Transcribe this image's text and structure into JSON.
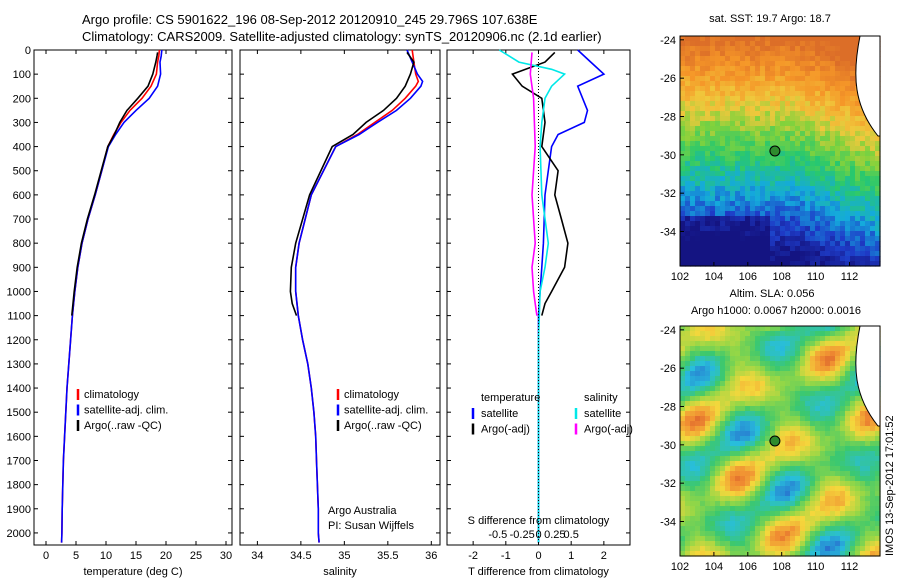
{
  "header": {
    "line1": "Argo profile: CS 5901622_196 08-Sep-2012 20120910_245 29.796S 107.638E",
    "line2": "Climatology: CARS2009. Satellite-adjusted climatology: synTS_20120906.nc (2.1d earlier)"
  },
  "side_text": "IMOS 13-Sep-2012 17:01:52",
  "colors": {
    "climatology": "#ff0000",
    "satellite": "#0000ff",
    "argo": "#000000",
    "cyan": "#00e8e8",
    "magenta": "#ff00ff",
    "marker": "#2e8b2e"
  },
  "chart_data": [
    {
      "id": "temperature",
      "type": "line",
      "xlabel": "temperature (deg C)",
      "ylabel": "",
      "xlim": [
        -2,
        31
      ],
      "ylim": [
        2050,
        0
      ],
      "xticks": [
        0,
        5,
        10,
        15,
        20,
        25,
        30
      ],
      "yticks": [
        0,
        100,
        200,
        300,
        400,
        500,
        600,
        700,
        800,
        900,
        1000,
        1100,
        1200,
        1300,
        1400,
        1500,
        1600,
        1700,
        1800,
        1900,
        2000
      ],
      "legend": {
        "position": "lower-center",
        "entries": [
          "climatology",
          "satellite-adj. clim.",
          "Argo(..raw -QC)"
        ]
      },
      "series": [
        {
          "name": "climatology",
          "color": "#ff0000",
          "x": [
            18.9,
            18.8,
            18.6,
            18.4,
            17.5,
            16.0,
            14.0,
            12.5,
            11.3,
            10.3,
            9.3,
            8.2,
            7.0,
            6.0,
            5.3,
            4.8,
            4.4,
            4.1,
            3.8,
            3.5,
            3.3,
            3.1,
            2.9,
            2.8,
            2.7,
            2.65,
            2.6
          ],
          "y": [
            0,
            25,
            50,
            100,
            150,
            200,
            250,
            300,
            350,
            400,
            500,
            600,
            700,
            800,
            900,
            1000,
            1100,
            1200,
            1300,
            1400,
            1500,
            1600,
            1700,
            1800,
            1900,
            2000,
            2040
          ]
        },
        {
          "name": "satellite-adj. clim.",
          "color": "#0000ff",
          "x": [
            19.3,
            19.2,
            19.0,
            19.1,
            18.6,
            17.2,
            15.0,
            13.0,
            11.6,
            10.4,
            9.3,
            8.2,
            7.0,
            6.0,
            5.3,
            4.8,
            4.4,
            4.1,
            3.8,
            3.5,
            3.3,
            3.1,
            2.9,
            2.8,
            2.7,
            2.65,
            2.6
          ],
          "y": [
            0,
            25,
            50,
            100,
            150,
            200,
            250,
            300,
            350,
            400,
            500,
            600,
            700,
            800,
            900,
            1000,
            1100,
            1200,
            1300,
            1400,
            1500,
            1600,
            1700,
            1800,
            1900,
            2000,
            2040
          ]
        },
        {
          "name": "Argo(..raw -QC)",
          "color": "#000000",
          "x": [
            18.6,
            18.5,
            18.3,
            17.8,
            17.0,
            15.3,
            13.5,
            12.3,
            11.4,
            10.3,
            9.2,
            8.1,
            6.9,
            5.9,
            5.2,
            4.7,
            4.3
          ],
          "y": [
            10,
            25,
            50,
            100,
            150,
            200,
            250,
            300,
            350,
            400,
            500,
            600,
            700,
            800,
            900,
            1000,
            1100
          ]
        }
      ],
      "annotations": []
    },
    {
      "id": "salinity",
      "type": "line",
      "xlabel": "salinity",
      "ylabel": "",
      "xlim": [
        33.8,
        36.1
      ],
      "ylim": [
        2050,
        0
      ],
      "xticks": [
        34,
        34.5,
        35,
        35.5,
        36
      ],
      "yticks": [],
      "legend": {
        "position": "lower-right",
        "entries": [
          "climatology",
          "satellite-adj. clim.",
          "Argo(..raw -QC)"
        ]
      },
      "series": [
        {
          "name": "climatology",
          "color": "#ff0000",
          "x": [
            35.78,
            35.8,
            35.82,
            35.85,
            35.82,
            35.7,
            35.55,
            35.35,
            35.15,
            34.9,
            34.62,
            34.48,
            34.44,
            34.44,
            34.47,
            34.52,
            34.58,
            34.62,
            34.65,
            34.67,
            34.68,
            34.69,
            34.7,
            34.7,
            34.71
          ],
          "y": [
            0,
            50,
            100,
            130,
            150,
            200,
            250,
            300,
            350,
            400,
            600,
            800,
            900,
            1000,
            1100,
            1200,
            1300,
            1400,
            1500,
            1600,
            1700,
            1800,
            1900,
            2000,
            2040
          ]
        },
        {
          "name": "satellite-adj. clim.",
          "color": "#0000ff",
          "x": [
            35.72,
            35.78,
            35.84,
            35.9,
            35.88,
            35.76,
            35.6,
            35.38,
            35.17,
            34.9,
            34.62,
            34.48,
            34.44,
            34.44,
            34.47,
            34.52,
            34.58,
            34.62,
            34.65,
            34.67,
            34.68,
            34.69,
            34.7,
            34.7,
            34.71
          ],
          "y": [
            0,
            50,
            100,
            130,
            150,
            200,
            250,
            300,
            350,
            400,
            600,
            800,
            900,
            1000,
            1100,
            1200,
            1300,
            1400,
            1500,
            1600,
            1700,
            1800,
            1900,
            2000,
            2040
          ]
        },
        {
          "name": "Argo(..raw -QC)",
          "color": "#000000",
          "x": [
            35.72,
            35.8,
            35.76,
            35.7,
            35.6,
            35.45,
            35.25,
            35.1,
            34.86,
            34.6,
            34.44,
            34.39,
            34.38,
            34.4,
            34.45
          ],
          "y": [
            10,
            50,
            100,
            150,
            200,
            250,
            300,
            350,
            400,
            600,
            800,
            900,
            1000,
            1050,
            1100
          ]
        }
      ],
      "annotations": [
        "Argo Australia",
        "PI: Susan Wijffels"
      ]
    },
    {
      "id": "difference",
      "type": "line",
      "xlabel": "T difference from climatology",
      "ylabel": "",
      "xlim": [
        -2.8,
        2.8
      ],
      "ylim": [
        2050,
        0
      ],
      "xticks": [
        -2,
        -1,
        0,
        1,
        2
      ],
      "secondary_xlabel": "S difference from climatology",
      "secondary_xticks": [
        "-0.5",
        "-0.25",
        "0",
        "0.25",
        "0.5"
      ],
      "legend": {
        "position": "lower",
        "groups": [
          "temperature",
          "salinity"
        ],
        "entries": [
          "satellite",
          "Argo(-adj)",
          "satellite",
          "Argo(-adj)"
        ]
      },
      "series": [
        {
          "name": "temperature satellite",
          "color": "#0000ff",
          "x": [
            1.2,
            1.6,
            2.0,
            1.2,
            1.5,
            1.4,
            0.6,
            0.4,
            0.3,
            0.2,
            0.15,
            0.1,
            0.05,
            0,
            0,
            0,
            0,
            0,
            0,
            0,
            0,
            0,
            0,
            0,
            0
          ],
          "y": [
            0,
            50,
            100,
            150,
            250,
            300,
            350,
            400,
            500,
            600,
            800,
            900,
            1000,
            1100,
            1200,
            1300,
            1400,
            1500,
            1600,
            1700,
            1800,
            1900,
            2000,
            2040,
            2040
          ]
        },
        {
          "name": "temperature Argo(-adj)",
          "color": "#000000",
          "x": [
            0.5,
            0.2,
            -0.8,
            -0.5,
            0.1,
            0.2,
            0.1,
            0.6,
            0.5,
            0.7,
            0.9,
            0.8,
            0.4,
            0.2,
            0.1
          ],
          "y": [
            10,
            50,
            100,
            150,
            200,
            300,
            400,
            500,
            600,
            700,
            800,
            900,
            1000,
            1050,
            1100
          ]
        },
        {
          "name": "salinity satellite",
          "color": "#00e8e8",
          "x": [
            -1.2,
            -0.6,
            0.4,
            0.8,
            0.4,
            0.2,
            0.1,
            0.05,
            0.1,
            0.3,
            0.2,
            0.05,
            0,
            0,
            0,
            0,
            0
          ],
          "y": [
            0,
            50,
            80,
            100,
            150,
            200,
            300,
            400,
            600,
            800,
            900,
            1000,
            1200,
            1500,
            1800,
            2000,
            2040
          ]
        },
        {
          "name": "salinity Argo(-adj)",
          "color": "#ff00ff",
          "x": [
            -0.2,
            -0.25,
            -0.15,
            -0.1,
            -0.2,
            -0.1,
            -0.2,
            -0.15,
            -0.1,
            -0.05
          ],
          "y": [
            10,
            100,
            200,
            400,
            600,
            800,
            900,
            1000,
            1050,
            1100
          ]
        }
      ],
      "annotations": []
    },
    {
      "id": "sst-map",
      "type": "heatmap",
      "title": "sat. SST: 19.7 Argo: 18.7",
      "xlim": [
        102,
        113.8
      ],
      "ylim": [
        -35.8,
        -23.8
      ],
      "xticks": [
        102,
        104,
        106,
        108,
        110,
        112
      ],
      "yticks": [
        -24,
        -26,
        -28,
        -30,
        -32,
        -34
      ],
      "marker": {
        "lon": 107.6,
        "lat": -29.8
      }
    },
    {
      "id": "sla-map",
      "type": "heatmap",
      "title": "Altim. SLA: 0.056",
      "subtitle": "Argo h1000: 0.0067 h2000: 0.0016",
      "xlim": [
        102,
        113.8
      ],
      "ylim": [
        -35.8,
        -23.8
      ],
      "xticks": [
        102,
        104,
        106,
        108,
        110,
        112
      ],
      "yticks": [
        -24,
        -26,
        -28,
        -30,
        -32,
        -34
      ],
      "marker": {
        "lon": 107.6,
        "lat": -29.8
      }
    }
  ]
}
